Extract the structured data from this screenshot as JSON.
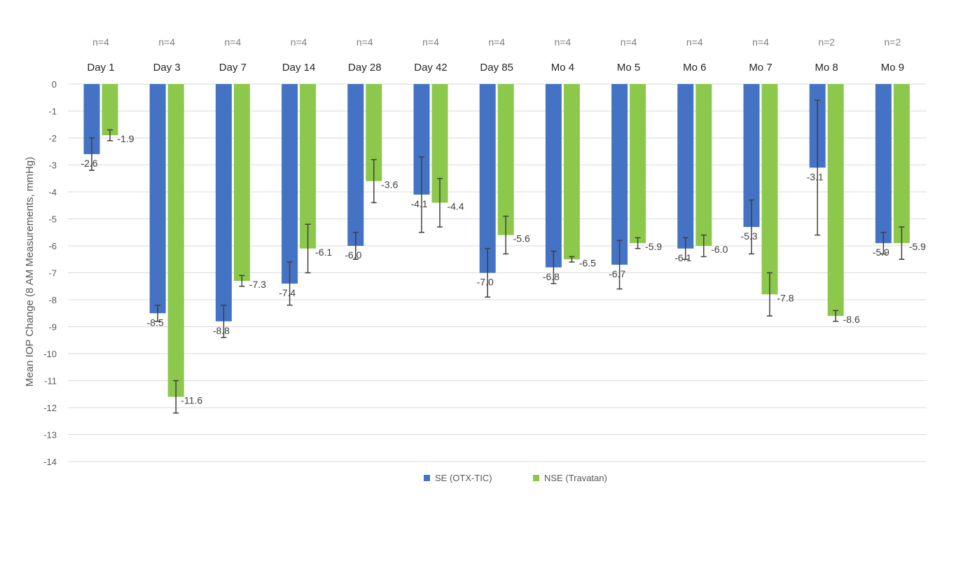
{
  "chart_data": {
    "type": "bar",
    "title": "",
    "xlabel": "",
    "ylabel": "Mean IOP Change (8 AM Measurements, mmHg)",
    "ylim": [
      -14,
      0
    ],
    "yticks": [
      0,
      -1,
      -2,
      -3,
      -4,
      -5,
      -6,
      -7,
      -8,
      -9,
      -10,
      -11,
      -12,
      -13,
      -14
    ],
    "grid": true,
    "legend_position": "bottom",
    "categories": [
      "Day 1",
      "Day 3",
      "Day 7",
      "Day 14",
      "Day 28",
      "Day 42",
      "Day 85",
      "Mo 4",
      "Mo 5",
      "Mo 6",
      "Mo 7",
      "Mo 8",
      "Mo 9"
    ],
    "sample_sizes": [
      "n=4",
      "n=4",
      "n=4",
      "n=4",
      "n=4",
      "n=4",
      "n=4",
      "n=4",
      "n=4",
      "n=4",
      "n=4",
      "n=2",
      "n=2"
    ],
    "series": [
      {
        "name": "SE (OTX-TIC)",
        "color": "#4472c4",
        "values": [
          -2.6,
          -8.5,
          -8.8,
          -7.4,
          -6.0,
          -4.1,
          -7.0,
          -6.8,
          -6.7,
          -6.1,
          -5.3,
          -3.1,
          -5.9
        ],
        "labels": [
          "-2.6",
          "-8.5",
          "-8.8",
          "-7.4",
          "-6.0",
          "-4.1",
          "-7.0",
          "-6.8",
          "-6.7",
          "-6.1",
          "-5.3",
          "-3.1",
          "-5.9"
        ],
        "error": [
          0.6,
          0.3,
          0.6,
          0.8,
          0.5,
          1.4,
          0.9,
          0.6,
          0.9,
          0.4,
          1.0,
          2.5,
          0.4
        ]
      },
      {
        "name": "NSE (Travatan)",
        "color": "#8cc84b",
        "values": [
          -1.9,
          -11.6,
          -7.3,
          -6.1,
          -3.6,
          -4.4,
          -5.6,
          -6.5,
          -5.9,
          -6.0,
          -7.8,
          -8.6,
          -5.9
        ],
        "labels": [
          "-1.9",
          "-11.6",
          "-7.3",
          "-6.1",
          "-3.6",
          "-4.4",
          "-5.6",
          "-6.5",
          "-5.9",
          "-6.0",
          "-7.8",
          "-8.6",
          "-5.9"
        ],
        "error": [
          0.2,
          0.6,
          0.2,
          0.9,
          0.8,
          0.9,
          0.7,
          0.1,
          0.2,
          0.4,
          0.8,
          0.2,
          0.6
        ]
      }
    ]
  }
}
